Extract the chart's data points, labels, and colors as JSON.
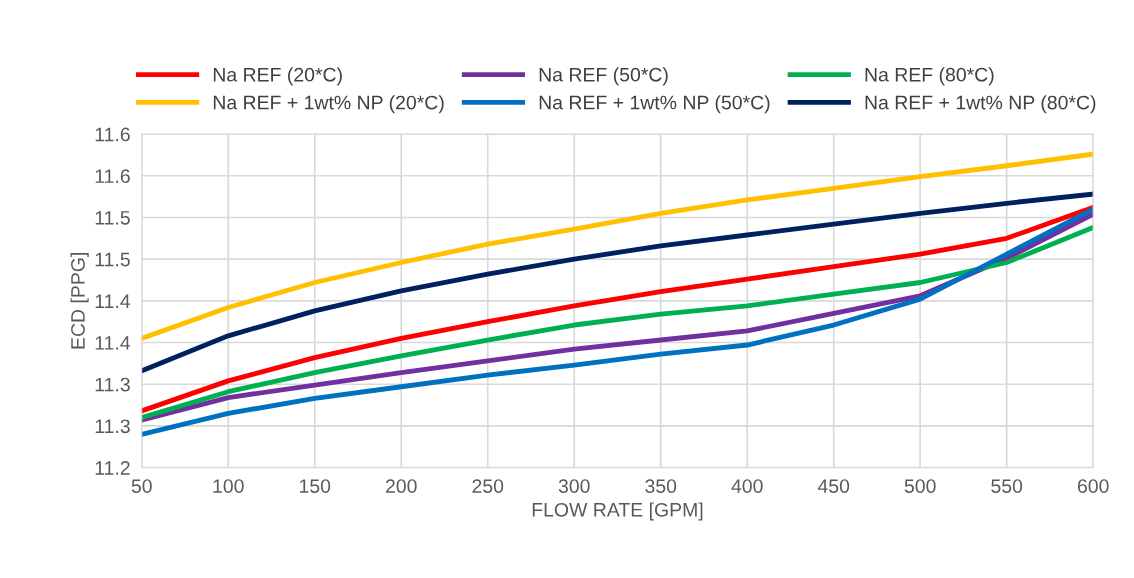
{
  "chart_data": {
    "type": "line",
    "xlabel": "FLOW RATE [GPM]",
    "ylabel": "ECD [PPG]",
    "x": [
      50,
      100,
      150,
      200,
      250,
      300,
      350,
      400,
      450,
      500,
      550,
      600
    ],
    "series": [
      {
        "name": "Na REF (20*C)",
        "color": "#ff0000",
        "values": [
          11.268,
          11.304,
          11.332,
          11.355,
          11.375,
          11.394,
          11.411,
          11.426,
          11.441,
          11.456,
          11.475,
          11.512
        ]
      },
      {
        "name": "Na REF (50*C)",
        "color": "#7030a0",
        "values": [
          11.257,
          11.284,
          11.299,
          11.314,
          11.328,
          11.342,
          11.353,
          11.364,
          11.385,
          11.406,
          11.451,
          11.504
        ]
      },
      {
        "name": "Na REF (80*C)",
        "color": "#00b050",
        "values": [
          11.26,
          11.291,
          11.314,
          11.334,
          11.353,
          11.371,
          11.384,
          11.394,
          11.408,
          11.422,
          11.446,
          11.488
        ]
      },
      {
        "name": "Na REF + 1wt% NP (20*C)",
        "color": "#ffc000",
        "values": [
          11.355,
          11.392,
          11.422,
          11.446,
          11.468,
          11.486,
          11.505,
          11.521,
          11.535,
          11.549,
          11.562,
          11.576
        ]
      },
      {
        "name": "Na REF + 1wt% NP (50*C)",
        "color": "#0070c0",
        "values": [
          11.24,
          11.265,
          11.283,
          11.297,
          11.311,
          11.323,
          11.336,
          11.347,
          11.371,
          11.402,
          11.456,
          11.51
        ]
      },
      {
        "name": "Na REF + 1wt% NP (80*C)",
        "color": "#002060",
        "values": [
          11.316,
          11.358,
          11.388,
          11.412,
          11.432,
          11.45,
          11.466,
          11.479,
          11.492,
          11.505,
          11.517,
          11.528
        ]
      }
    ],
    "xlim": [
      50,
      600
    ],
    "xticks": [
      50,
      100,
      150,
      200,
      250,
      300,
      350,
      400,
      450,
      500,
      550,
      600
    ],
    "ylim": [
      11.2,
      11.6
    ],
    "yticks": [
      11.2,
      {
        "value": 11.25,
        "label": "11.3"
      },
      11.3,
      {
        "value": 11.35,
        "label": "11.4"
      },
      11.4,
      {
        "value": 11.45,
        "label": "11.5"
      },
      11.5,
      {
        "value": 11.55,
        "label": "11.6"
      },
      11.6
    ],
    "grid": true,
    "legend": "top",
    "marker": "none",
    "line_style": "solid"
  }
}
